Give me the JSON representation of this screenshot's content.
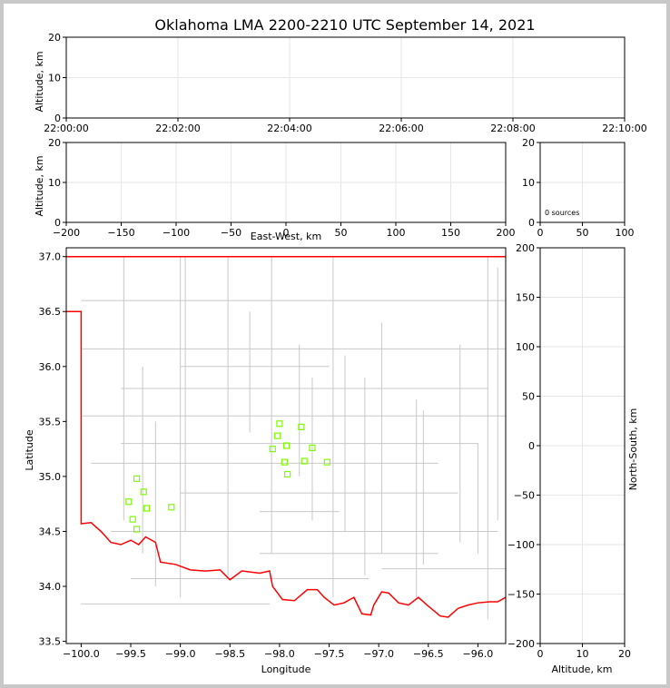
{
  "chart_data": {
    "type": "scatter",
    "title": "Oklahoma LMA 2200-2210 UTC September 14, 2021",
    "panels": {
      "time_altitude": {
        "ylabel": "Altitude, km",
        "ylim": [
          0,
          20
        ],
        "yticks": [
          "0",
          "10",
          "20"
        ],
        "xticks": [
          "22:00:00",
          "22:02:00",
          "22:04:00",
          "22:06:00",
          "22:08:00",
          "22:10:00"
        ],
        "grid": true
      },
      "ew_altitude": {
        "xlabel": "East-West, km",
        "ylabel": "Altitude, km",
        "xlim": [
          -200,
          200
        ],
        "ylim": [
          0,
          20
        ],
        "xticks": [
          "−200",
          "−150",
          "−100",
          "−50",
          "0",
          "50",
          "100",
          "150",
          "200"
        ],
        "yticks": [
          "0",
          "10",
          "20"
        ],
        "grid": true
      },
      "histogram": {
        "annotation": "0 sources",
        "xlim": [
          0,
          100
        ],
        "ylim": [
          0,
          20
        ],
        "xticks": [
          "0",
          "50",
          "100"
        ],
        "yticks": [
          "0",
          "10",
          "20"
        ],
        "grid": true
      },
      "plan_view": {
        "xlabel": "Longitude",
        "ylabel": "Latitude",
        "xlim": [
          -100.15,
          -95.72
        ],
        "ylim": [
          33.48,
          37.08
        ],
        "xticks": [
          "−100.0",
          "−99.5",
          "−99.0",
          "−98.5",
          "−98.0",
          "−97.5",
          "−97.0",
          "−96.5",
          "−96.0"
        ],
        "yticks": [
          "33.5",
          "34.0",
          "34.5",
          "35.0",
          "35.5",
          "36.0",
          "36.5",
          "37.0"
        ],
        "station_color": "#7cfc00",
        "border_color": "#ff0000",
        "county_color": "#c8c8c8",
        "stations": [
          {
            "lon": -98.0,
            "lat": 35.48
          },
          {
            "lon": -97.78,
            "lat": 35.45
          },
          {
            "lon": -98.02,
            "lat": 35.37
          },
          {
            "lon": -97.93,
            "lat": 35.28
          },
          {
            "lon": -98.07,
            "lat": 35.25
          },
          {
            "lon": -97.67,
            "lat": 35.26
          },
          {
            "lon": -97.95,
            "lat": 35.13
          },
          {
            "lon": -97.75,
            "lat": 35.14
          },
          {
            "lon": -97.52,
            "lat": 35.13
          },
          {
            "lon": -97.92,
            "lat": 35.02
          },
          {
            "lon": -99.44,
            "lat": 34.98
          },
          {
            "lon": -99.37,
            "lat": 34.86
          },
          {
            "lon": -99.52,
            "lat": 34.77
          },
          {
            "lon": -99.09,
            "lat": 34.72
          },
          {
            "lon": -99.34,
            "lat": 34.71
          },
          {
            "lon": -99.48,
            "lat": 34.61
          },
          {
            "lon": -99.44,
            "lat": 34.52
          }
        ]
      },
      "ns_altitude": {
        "xlabel": "Altitude, km",
        "ylabel": "North-South, km",
        "xlim": [
          0,
          20
        ],
        "ylim": [
          -200,
          200
        ],
        "xticks": [
          "0",
          "10",
          "20"
        ],
        "yticks": [
          "−200",
          "−150",
          "−100",
          "−50",
          "0",
          "50",
          "100",
          "150",
          "200"
        ],
        "grid": true
      }
    }
  }
}
